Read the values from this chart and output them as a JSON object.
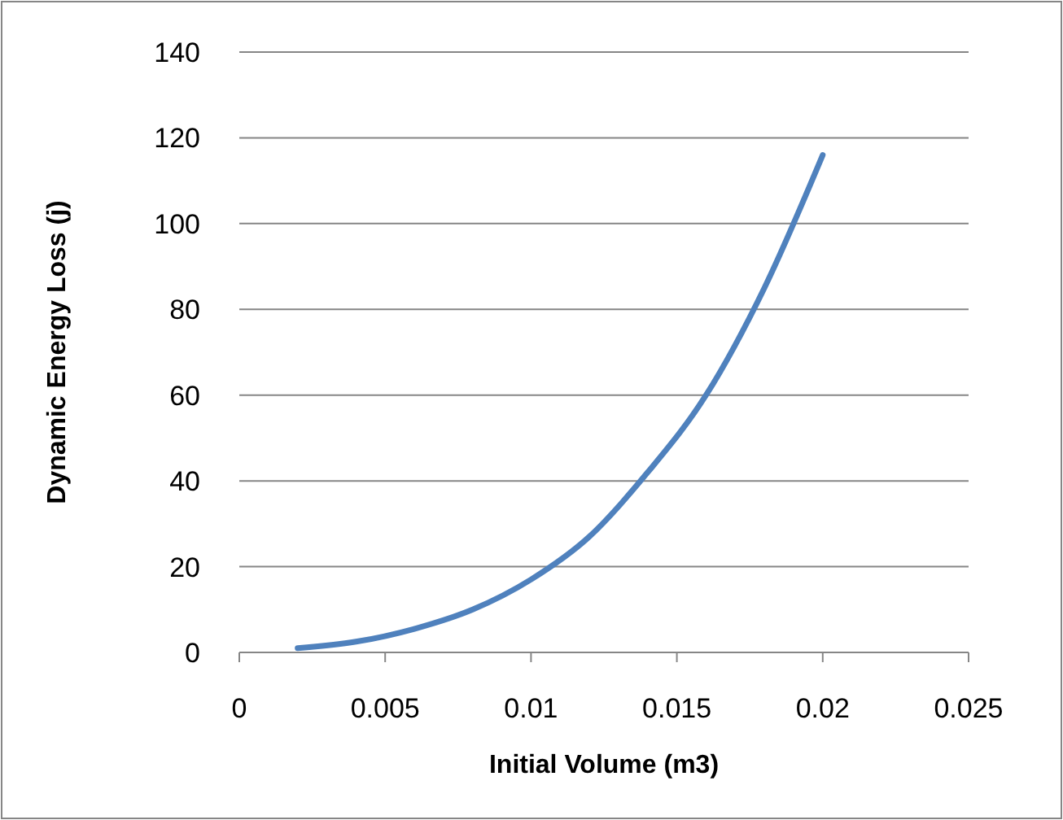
{
  "chart_data": {
    "type": "line",
    "xlabel": "Initial Volume (m3)",
    "ylabel": "Dynamic Energy Loss (j)",
    "xlim": [
      0,
      0.025
    ],
    "xticks": [
      0,
      0.005,
      0.01,
      0.015,
      0.02,
      0.025
    ],
    "ylim": [
      0,
      140
    ],
    "yticks": [
      0,
      20,
      40,
      60,
      80,
      100,
      120,
      140
    ],
    "grid": "y",
    "marker": "none",
    "line_style": "solid",
    "series": [
      {
        "color": "#4f81bd",
        "x": [
          0.002,
          0.004,
          0.006,
          0.008,
          0.01,
          0.012,
          0.014,
          0.016,
          0.018,
          0.02
        ],
        "values": [
          1,
          2.5,
          5.5,
          10,
          17,
          27,
          42,
          60,
          85,
          116
        ]
      }
    ]
  }
}
